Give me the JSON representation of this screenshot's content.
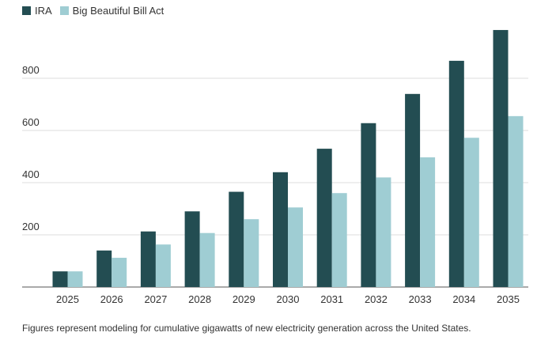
{
  "chart_data": {
    "type": "bar",
    "categories": [
      "2025",
      "2026",
      "2027",
      "2028",
      "2029",
      "2030",
      "2031",
      "2032",
      "2033",
      "2034",
      "2035"
    ],
    "series": [
      {
        "name": "IRA",
        "color": "#234d52",
        "values": [
          60,
          140,
          213,
          290,
          365,
          440,
          530,
          628,
          740,
          867,
          985
        ]
      },
      {
        "name": "Big Beautiful Bill Act",
        "color": "#9fcdd3",
        "values": [
          60,
          112,
          163,
          207,
          260,
          305,
          360,
          420,
          497,
          572,
          655
        ]
      }
    ],
    "yticks": [
      200,
      400,
      600,
      800
    ],
    "ylim": [
      0,
      1000
    ],
    "grid": true,
    "legend_position": "top-left"
  },
  "caption": "Figures represent modeling for cumulative gigawatts of new electricity generation across the United States."
}
